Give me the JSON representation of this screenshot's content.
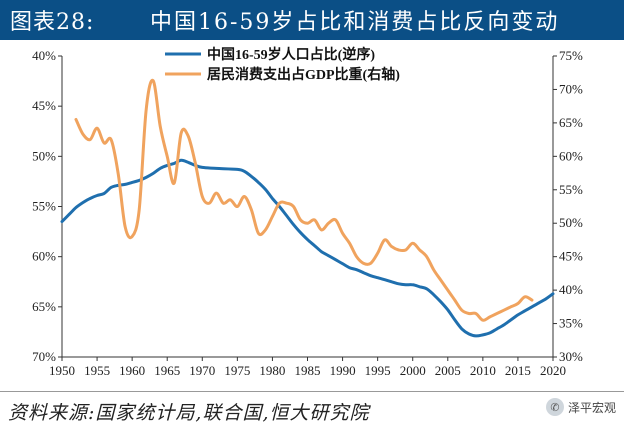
{
  "header": {
    "label": "图表28:",
    "title": "中国16-59岁占比和消费占比反向变动"
  },
  "footer": {
    "source": "资料来源:国家统计局,联合国,恒大研究院",
    "watermark": "泽平宏观",
    "watermark_icon": "wechat-icon"
  },
  "colors": {
    "header_bg": "#0b4f86",
    "series_working_age": "#1f6fae",
    "series_consumption": "#f0a35e"
  },
  "chart_data": {
    "type": "line",
    "x_ticks": [
      "1950",
      "1955",
      "1960",
      "1965",
      "1970",
      "1975",
      "1980",
      "1985",
      "1990",
      "1995",
      "2000",
      "2005",
      "2010",
      "2015",
      "2020"
    ],
    "xlim": [
      1950,
      2020
    ],
    "left_axis": {
      "ticks": [
        "40%",
        "45%",
        "50%",
        "55%",
        "60%",
        "65%",
        "70%"
      ],
      "range": [
        40,
        70
      ],
      "inverted": true
    },
    "right_axis": {
      "ticks": [
        "75%",
        "70%",
        "65%",
        "60%",
        "55%",
        "50%",
        "45%",
        "40%",
        "35%",
        "30%"
      ],
      "range": [
        30,
        75
      ]
    },
    "grid": false,
    "legend_position": "top-center",
    "series": [
      {
        "name": "中国16-59岁人口占比(逆序)",
        "axis": "left",
        "color": "#1f6fae",
        "points": [
          [
            1950,
            56.5
          ],
          [
            1951,
            55.8
          ],
          [
            1952,
            55.1
          ],
          [
            1953,
            54.6
          ],
          [
            1954,
            54.2
          ],
          [
            1955,
            53.9
          ],
          [
            1956,
            53.7
          ],
          [
            1957,
            53.1
          ],
          [
            1958,
            52.9
          ],
          [
            1959,
            52.8
          ],
          [
            1960,
            52.6
          ],
          [
            1961,
            52.4
          ],
          [
            1962,
            52.1
          ],
          [
            1963,
            51.7
          ],
          [
            1964,
            51.2
          ],
          [
            1965,
            50.9
          ],
          [
            1966,
            50.7
          ],
          [
            1967,
            50.4
          ],
          [
            1968,
            50.6
          ],
          [
            1969,
            50.9
          ],
          [
            1970,
            51.1
          ],
          [
            1972,
            51.2
          ],
          [
            1975,
            51.3
          ],
          [
            1976,
            51.5
          ],
          [
            1977,
            52.0
          ],
          [
            1978,
            52.6
          ],
          [
            1979,
            53.3
          ],
          [
            1980,
            54.2
          ],
          [
            1981,
            55.0
          ],
          [
            1982,
            55.9
          ],
          [
            1983,
            56.8
          ],
          [
            1984,
            57.6
          ],
          [
            1985,
            58.3
          ],
          [
            1986,
            58.9
          ],
          [
            1987,
            59.5
          ],
          [
            1988,
            59.9
          ],
          [
            1989,
            60.3
          ],
          [
            1990,
            60.7
          ],
          [
            1991,
            61.1
          ],
          [
            1992,
            61.3
          ],
          [
            1993,
            61.6
          ],
          [
            1994,
            61.9
          ],
          [
            1995,
            62.1
          ],
          [
            1996,
            62.3
          ],
          [
            1997,
            62.5
          ],
          [
            1998,
            62.7
          ],
          [
            1999,
            62.8
          ],
          [
            2000,
            62.8
          ],
          [
            2001,
            63.0
          ],
          [
            2002,
            63.2
          ],
          [
            2003,
            63.8
          ],
          [
            2004,
            64.5
          ],
          [
            2005,
            65.3
          ],
          [
            2006,
            66.3
          ],
          [
            2007,
            67.2
          ],
          [
            2008,
            67.7
          ],
          [
            2009,
            67.9
          ],
          [
            2010,
            67.8
          ],
          [
            2011,
            67.6
          ],
          [
            2012,
            67.2
          ],
          [
            2013,
            66.8
          ],
          [
            2014,
            66.3
          ],
          [
            2015,
            65.8
          ],
          [
            2016,
            65.4
          ],
          [
            2017,
            65.0
          ],
          [
            2018,
            64.6
          ],
          [
            2019,
            64.2
          ],
          [
            2020,
            63.7
          ]
        ]
      },
      {
        "name": "居民消费支出占GDP比重(右轴)",
        "axis": "right",
        "color": "#f0a35e",
        "points": [
          [
            1952,
            65.5
          ],
          [
            1953,
            63.3
          ],
          [
            1954,
            62.5
          ],
          [
            1955,
            64.2
          ],
          [
            1956,
            62.0
          ],
          [
            1957,
            62.5
          ],
          [
            1958,
            57.5
          ],
          [
            1959,
            49.5
          ],
          [
            1960,
            48.0
          ],
          [
            1961,
            52.0
          ],
          [
            1962,
            67.0
          ],
          [
            1963,
            71.3
          ],
          [
            1964,
            64.5
          ],
          [
            1965,
            60.0
          ],
          [
            1966,
            56.0
          ],
          [
            1967,
            63.5
          ],
          [
            1968,
            63.0
          ],
          [
            1969,
            59.0
          ],
          [
            1970,
            54.0
          ],
          [
            1971,
            53.0
          ],
          [
            1972,
            54.5
          ],
          [
            1973,
            53.0
          ],
          [
            1974,
            53.5
          ],
          [
            1975,
            52.5
          ],
          [
            1976,
            54.0
          ],
          [
            1977,
            52.0
          ],
          [
            1978,
            48.5
          ],
          [
            1979,
            49.0
          ],
          [
            1980,
            51.0
          ],
          [
            1981,
            53.0
          ],
          [
            1982,
            53.0
          ],
          [
            1983,
            52.5
          ],
          [
            1984,
            50.5
          ],
          [
            1985,
            50.0
          ],
          [
            1986,
            50.5
          ],
          [
            1987,
            49.0
          ],
          [
            1988,
            50.0
          ],
          [
            1989,
            50.5
          ],
          [
            1990,
            48.5
          ],
          [
            1991,
            47.0
          ],
          [
            1992,
            45.0
          ],
          [
            1993,
            44.0
          ],
          [
            1994,
            44.0
          ],
          [
            1995,
            45.5
          ],
          [
            1996,
            47.5
          ],
          [
            1997,
            46.5
          ],
          [
            1998,
            46.0
          ],
          [
            1999,
            46.0
          ],
          [
            2000,
            47.0
          ],
          [
            2001,
            46.0
          ],
          [
            2002,
            45.0
          ],
          [
            2003,
            43.0
          ],
          [
            2004,
            41.5
          ],
          [
            2005,
            40.0
          ],
          [
            2006,
            38.5
          ],
          [
            2007,
            37.0
          ],
          [
            2008,
            36.5
          ],
          [
            2009,
            36.5
          ],
          [
            2010,
            35.5
          ],
          [
            2011,
            36.0
          ],
          [
            2012,
            36.5
          ],
          [
            2013,
            37.0
          ],
          [
            2014,
            37.5
          ],
          [
            2015,
            38.0
          ],
          [
            2016,
            39.0
          ],
          [
            2017,
            38.5
          ]
        ]
      }
    ]
  }
}
